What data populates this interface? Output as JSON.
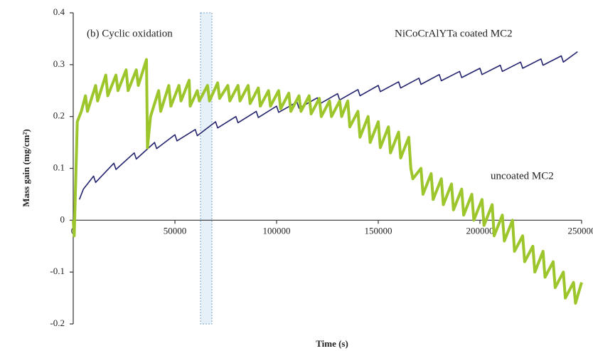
{
  "chart_data": {
    "type": "line",
    "title": "(b) Cyclic oxidation",
    "x_label": "Time (s)",
    "y_label": "Mass gain (mg/cm²)",
    "xlim": [
      0,
      250000
    ],
    "xticks": [
      0,
      50000,
      100000,
      150000,
      200000,
      250000
    ],
    "ylim": [
      -0.2,
      0.4
    ],
    "yticks": [
      0.4,
      0.3,
      0.2,
      0.1,
      0,
      -0.1,
      -0.2
    ],
    "series": [
      {
        "name": "NiCoCrAlYTa coated MC2",
        "color": "#23236e",
        "x": [
          3000,
          5000,
          10000,
          11000,
          20000,
          21000,
          30000,
          31000,
          40000,
          41000,
          50000,
          51000,
          60000,
          61000,
          70000,
          71000,
          80000,
          81000,
          90000,
          91000,
          100000,
          101000,
          110000,
          111000,
          120000,
          121000,
          130000,
          131000,
          140000,
          141000,
          150000,
          151000,
          160000,
          161000,
          170000,
          171000,
          180000,
          181000,
          190000,
          191000,
          200000,
          201000,
          210000,
          211000,
          220000,
          221000,
          230000,
          231000,
          240000,
          241000,
          248000
        ],
        "values": [
          0.04,
          0.06,
          0.085,
          0.073,
          0.11,
          0.098,
          0.13,
          0.118,
          0.15,
          0.138,
          0.165,
          0.153,
          0.175,
          0.163,
          0.19,
          0.178,
          0.2,
          0.188,
          0.21,
          0.198,
          0.22,
          0.208,
          0.228,
          0.216,
          0.236,
          0.224,
          0.244,
          0.232,
          0.252,
          0.24,
          0.26,
          0.248,
          0.267,
          0.255,
          0.274,
          0.262,
          0.281,
          0.269,
          0.287,
          0.275,
          0.293,
          0.281,
          0.299,
          0.287,
          0.305,
          0.293,
          0.311,
          0.299,
          0.317,
          0.305,
          0.325
        ]
      },
      {
        "name": "uncoated MC2",
        "color": "#9cc62b",
        "x": [
          0,
          500,
          2000,
          4000,
          6000,
          7000,
          11000,
          12000,
          16000,
          17000,
          21000,
          22000,
          26000,
          27000,
          31000,
          32000,
          36000,
          36500,
          38000,
          42000,
          43000,
          47000,
          48000,
          52000,
          53000,
          57000,
          57500,
          61000,
          62000,
          66000,
          67000,
          71000,
          72000,
          76000,
          77000,
          81000,
          82000,
          86000,
          87000,
          91000,
          92000,
          96000,
          97000,
          101000,
          102000,
          106000,
          107000,
          111000,
          112000,
          116000,
          117000,
          121000,
          122000,
          126000,
          127000,
          131000,
          132000,
          135000,
          136000,
          140000,
          141000,
          145000,
          146000,
          150000,
          151000,
          155000,
          156000,
          160000,
          161000,
          165000,
          166000,
          167000,
          171000,
          172000,
          176000,
          177000,
          181000,
          182000,
          186000,
          187000,
          191000,
          192000,
          196000,
          197000,
          201000,
          202000,
          206000,
          207000,
          211000,
          212000,
          216000,
          217000,
          221000,
          222000,
          226000,
          227000,
          231000,
          232000,
          236000,
          237000,
          241000,
          242000,
          246000,
          247000,
          250000
        ],
        "values": [
          0,
          -0.03,
          0.19,
          0.21,
          0.24,
          0.21,
          0.26,
          0.23,
          0.28,
          0.24,
          0.28,
          0.25,
          0.29,
          0.25,
          0.29,
          0.26,
          0.31,
          0.14,
          0.2,
          0.25,
          0.21,
          0.26,
          0.22,
          0.26,
          0.23,
          0.27,
          0.22,
          0.25,
          0.23,
          0.26,
          0.23,
          0.265,
          0.235,
          0.26,
          0.23,
          0.26,
          0.23,
          0.26,
          0.225,
          0.255,
          0.22,
          0.25,
          0.22,
          0.25,
          0.215,
          0.245,
          0.21,
          0.24,
          0.21,
          0.24,
          0.205,
          0.235,
          0.2,
          0.23,
          0.2,
          0.23,
          0.2,
          0.23,
          0.18,
          0.21,
          0.16,
          0.2,
          0.15,
          0.19,
          0.14,
          0.18,
          0.13,
          0.17,
          0.12,
          0.16,
          0.1,
          0.08,
          0.1,
          0.05,
          0.09,
          0.04,
          0.08,
          0.03,
          0.07,
          0.02,
          0.06,
          0.01,
          0.05,
          0,
          0.04,
          -0.01,
          0.03,
          -0.03,
          0.01,
          -0.04,
          0,
          -0.06,
          -0.03,
          -0.08,
          -0.05,
          -0.1,
          -0.06,
          -0.11,
          -0.08,
          -0.13,
          -0.1,
          -0.15,
          -0.12,
          -0.16,
          -0.12
        ]
      }
    ]
  }
}
